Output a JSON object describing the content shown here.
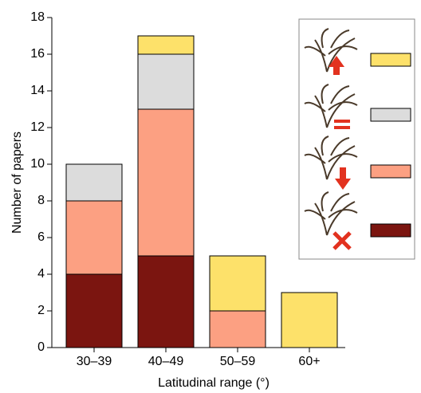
{
  "chart_data": {
    "type": "stacked-bar",
    "x_label": "Latitudinal range (°)",
    "y_label": "Number of papers",
    "categories": [
      "30–39",
      "40–49",
      "50–59",
      "60+"
    ],
    "series": [
      {
        "color": "#7b1510",
        "values": [
          4,
          5,
          0,
          0
        ]
      },
      {
        "color": "#fca082",
        "values": [
          4,
          8,
          2,
          0
        ]
      },
      {
        "color": "#dcdcdc",
        "values": [
          2,
          3,
          0,
          0
        ]
      },
      {
        "color": "#fde16a",
        "values": [
          0,
          1,
          3,
          3
        ]
      }
    ],
    "ylim": [
      0,
      18
    ],
    "yticks": [
      0,
      2,
      4,
      6,
      8,
      10,
      12,
      14,
      16,
      18
    ]
  }
}
